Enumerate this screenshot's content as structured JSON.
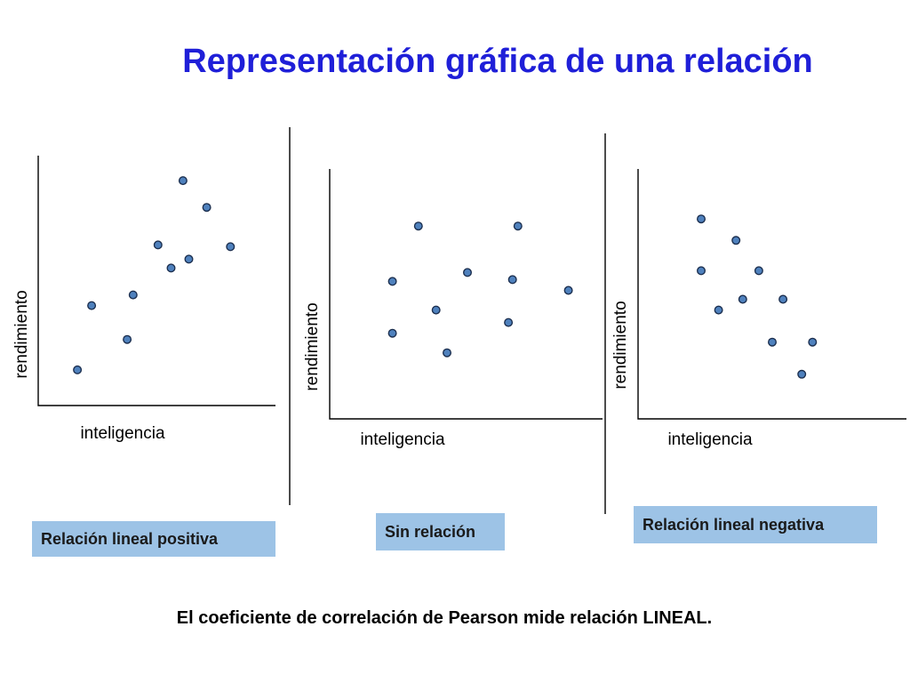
{
  "title": "Representación gráfica de una relación",
  "footer": "El coeficiente de correlación de Pearson mide relación LINEAL.",
  "colors": {
    "title": "#1f1fd8",
    "point": "#4f81bd",
    "label_box": "#9dc3e6"
  },
  "chart_data": [
    {
      "type": "scatter",
      "xlabel": "inteligencia",
      "ylabel": "rendimiento",
      "caption": "Relación lineal positiva",
      "grid": false,
      "x": [
        1.65,
        2.25,
        3.75,
        4.0,
        5.05,
        5.6,
        6.1,
        6.35,
        7.1,
        8.1
      ],
      "y": [
        1.0,
        2.8,
        1.85,
        3.1,
        4.5,
        3.85,
        6.3,
        4.1,
        5.55,
        4.45
      ]
    },
    {
      "type": "scatter",
      "xlabel": "inteligencia",
      "ylabel": "rendimiento",
      "caption": "Sin relación",
      "grid": false,
      "x": [
        2.3,
        2.3,
        3.25,
        3.9,
        4.3,
        5.05,
        6.55,
        6.7,
        6.9,
        8.75
      ],
      "y": [
        2.4,
        3.85,
        5.4,
        3.05,
        1.85,
        4.1,
        2.7,
        3.9,
        5.4,
        3.6
      ]
    },
    {
      "type": "scatter",
      "xlabel": "inteligencia",
      "ylabel": "rendimiento",
      "caption": "Relación lineal negativa",
      "grid": false,
      "x": [
        2.35,
        2.35,
        3.0,
        3.65,
        3.9,
        4.5,
        5.0,
        5.4,
        6.1,
        6.5
      ],
      "y": [
        5.6,
        4.15,
        3.05,
        5.0,
        3.35,
        4.15,
        2.15,
        3.35,
        1.25,
        2.15
      ]
    }
  ]
}
